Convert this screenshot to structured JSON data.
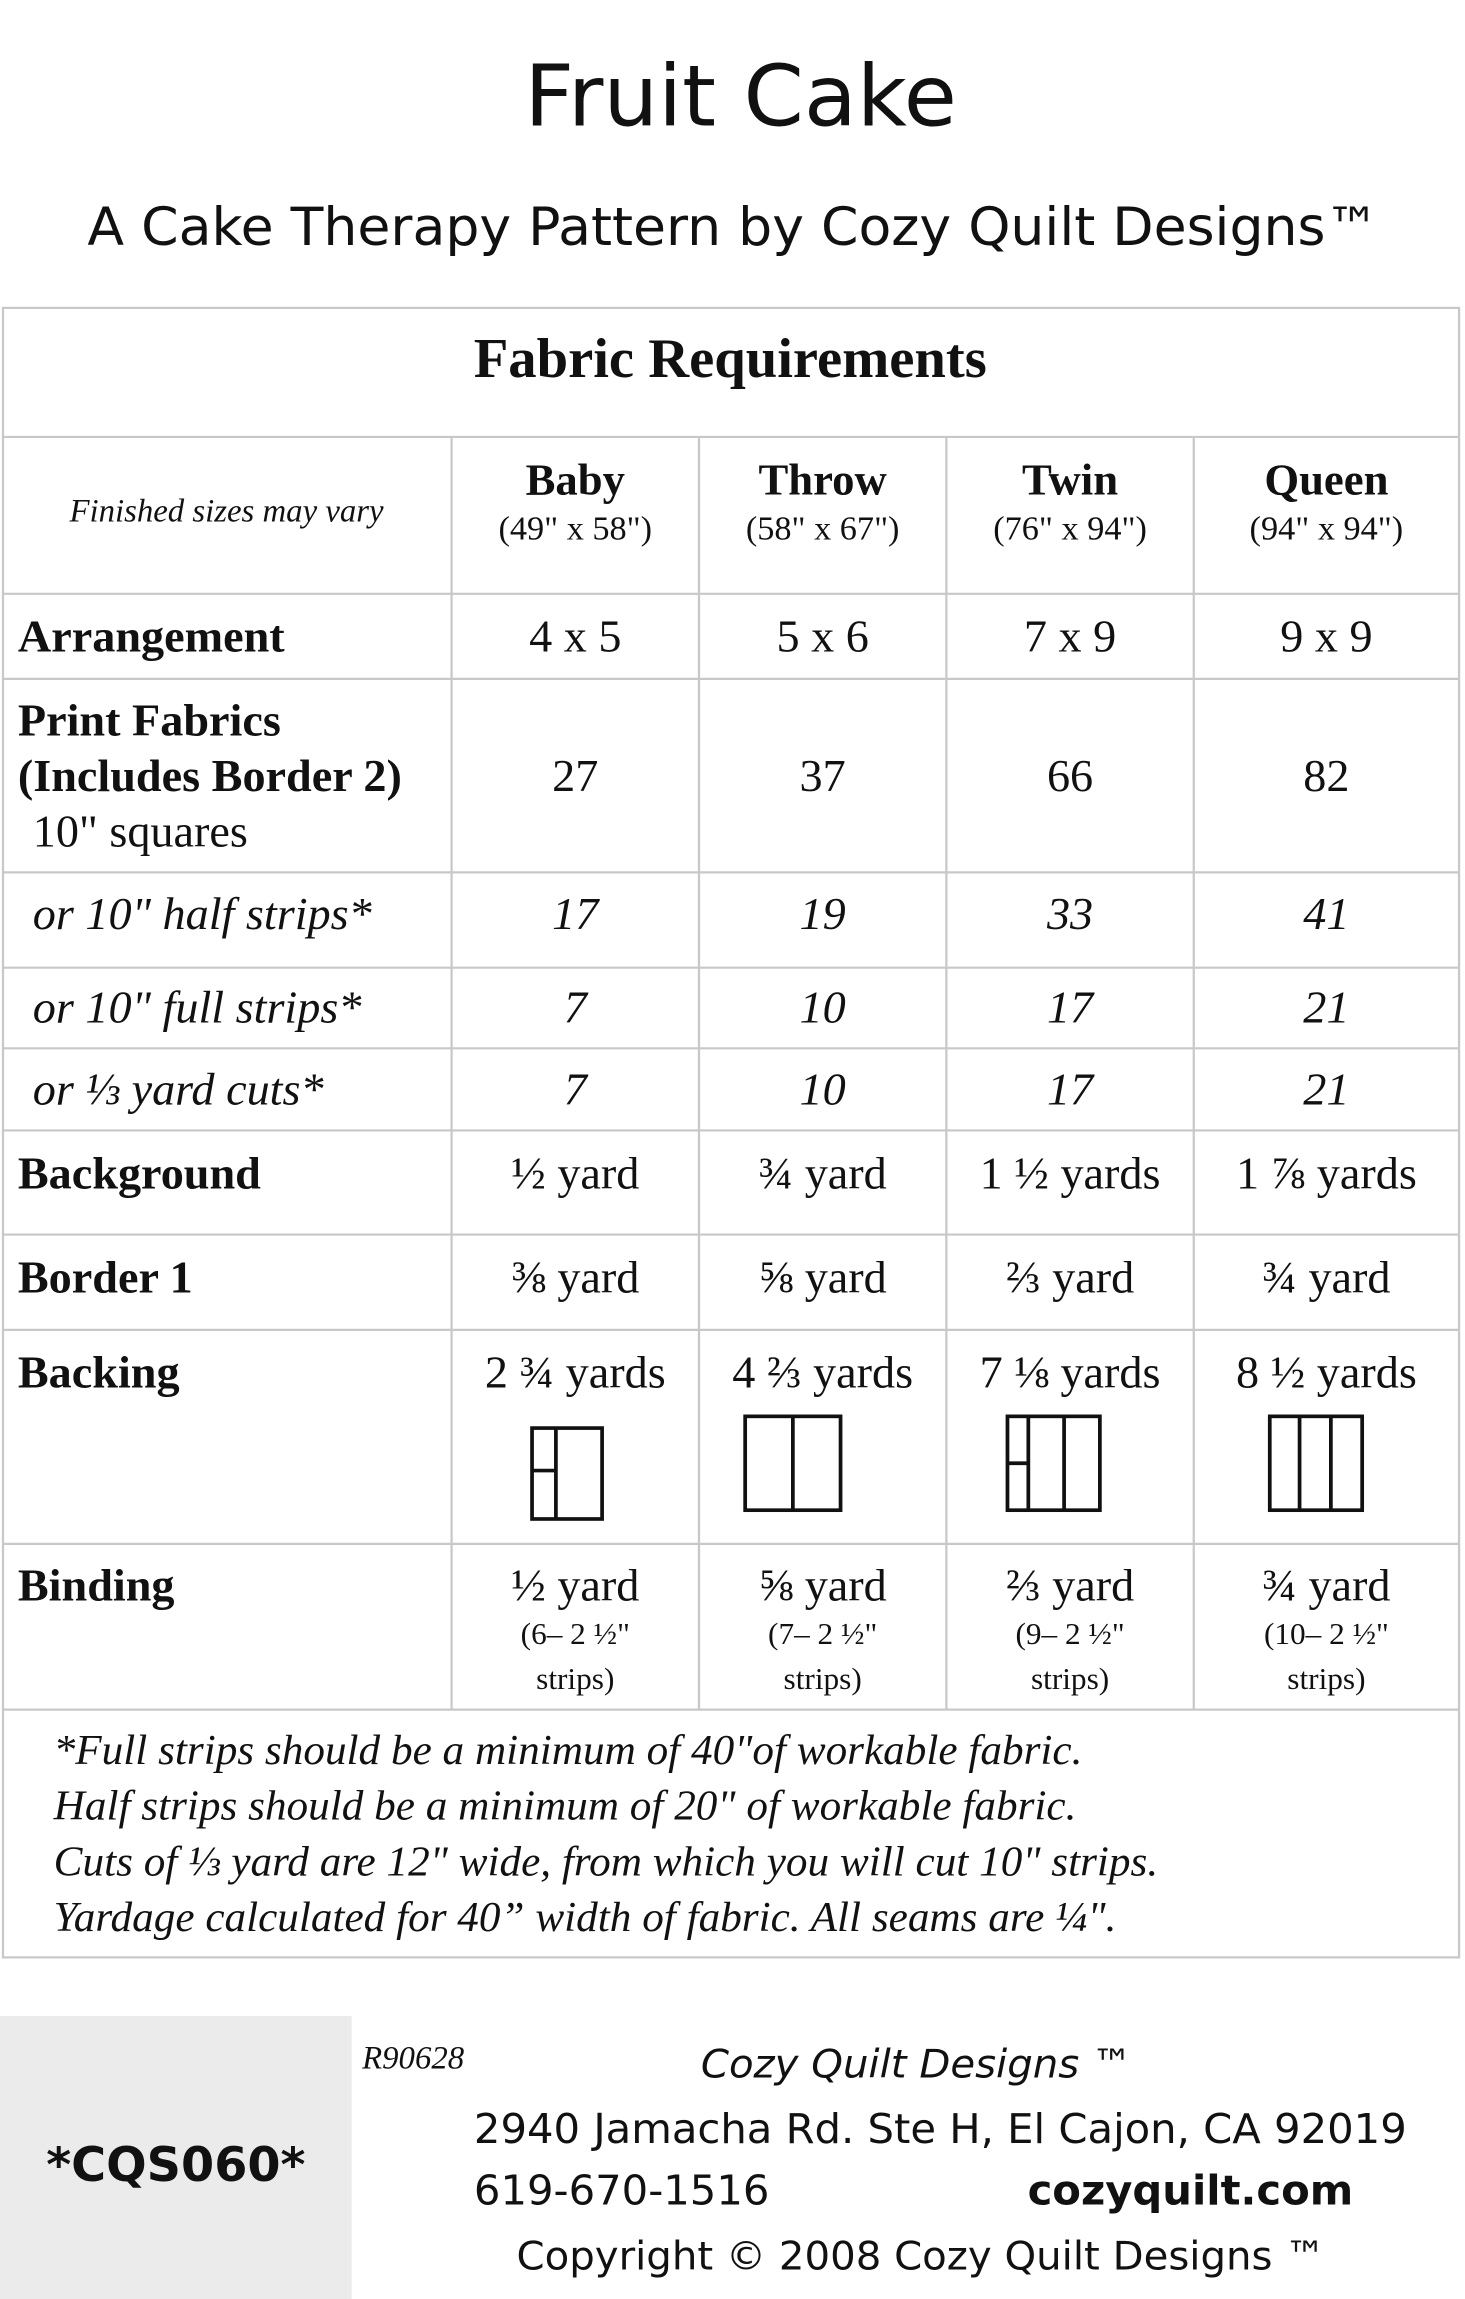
{
  "header": {
    "title": "Fruit Cake",
    "subtitle": "A Cake Therapy Pattern by Cozy Quilt Designs™"
  },
  "table": {
    "title": "Fabric Requirements",
    "note": "Finished sizes may vary",
    "columns": [
      {
        "name": "Baby",
        "size": "(49\" x 58\")"
      },
      {
        "name": "Throw",
        "size": "(58\" x 67\")"
      },
      {
        "name": "Twin",
        "size": "(76\" x 94\")"
      },
      {
        "name": "Queen",
        "size": "(94\" x 94\")"
      }
    ],
    "rows": [
      {
        "label": [
          "Arrangement"
        ],
        "cells": [
          [
            "4 x 5"
          ],
          [
            "5 x 6"
          ],
          [
            "7 x 9"
          ],
          [
            "9 x 9"
          ]
        ]
      },
      {
        "label": [
          "Print Fabrics",
          "(Includes Border 2)",
          "10\" squares"
        ],
        "cells": [
          [
            "27"
          ],
          [
            "37"
          ],
          [
            "66"
          ],
          [
            "82"
          ]
        ]
      },
      {
        "label": [
          "or 10\" half strips*"
        ],
        "cells": [
          [
            "17"
          ],
          [
            "19"
          ],
          [
            "33"
          ],
          [
            "41"
          ]
        ]
      },
      {
        "label": [
          "or 10\" full strips*"
        ],
        "cells": [
          [
            "7"
          ],
          [
            "10"
          ],
          [
            "17"
          ],
          [
            "21"
          ]
        ]
      },
      {
        "label": [
          "or ⅓ yard cuts*"
        ],
        "cells": [
          [
            "7"
          ],
          [
            "10"
          ],
          [
            "17"
          ],
          [
            "21"
          ]
        ]
      },
      {
        "label": [
          "Background"
        ],
        "cells": [
          [
            "½ yard"
          ],
          [
            "¾ yard"
          ],
          [
            "1 ½ yards"
          ],
          [
            "1 ⅞ yards"
          ]
        ]
      },
      {
        "label": [
          "Border 1"
        ],
        "cells": [
          [
            "⅜ yard"
          ],
          [
            "⅝ yard"
          ],
          [
            "⅔ yard"
          ],
          [
            "¾ yard"
          ]
        ]
      },
      {
        "label": [
          "Backing"
        ],
        "cells": [
          [
            "2 ¾ yards"
          ],
          [
            "4 ⅔ yards"
          ],
          [
            "7 ⅛ yards"
          ],
          [
            "8 ½ yards"
          ]
        ]
      },
      {
        "label": [
          "Binding"
        ],
        "cells": [
          [
            "½ yard",
            "(6– 2 ½\"",
            "strips)"
          ],
          [
            "⅝ yard",
            "(7– 2 ½\"",
            "strips)"
          ],
          [
            "⅔ yard",
            "(9– 2 ½\"",
            "strips)"
          ],
          [
            "¾ yard",
            "(10– 2 ½\"",
            "strips)"
          ]
        ]
      }
    ]
  },
  "footnotes": [
    "*Full strips should be a minimum of 40\"of workable fabric.",
    "Half strips should be a minimum of 20\" of workable fabric.",
    "Cuts of ⅓ yard are 12\" wide, from which you will cut 10\" strips.",
    "Yardage calculated for 40” width of fabric. All seams are ¼\"."
  ],
  "footer": {
    "code": "*CQS060*",
    "revision": "R90628",
    "company": "Cozy Quilt Designs ™",
    "address": "2940 Jamacha Rd. Ste H, El Cajon, CA 92019",
    "phone": "619-670-1516",
    "website": "cozyquilt.com",
    "copyright": "Copyright © 2008 Cozy Quilt Designs ™"
  }
}
